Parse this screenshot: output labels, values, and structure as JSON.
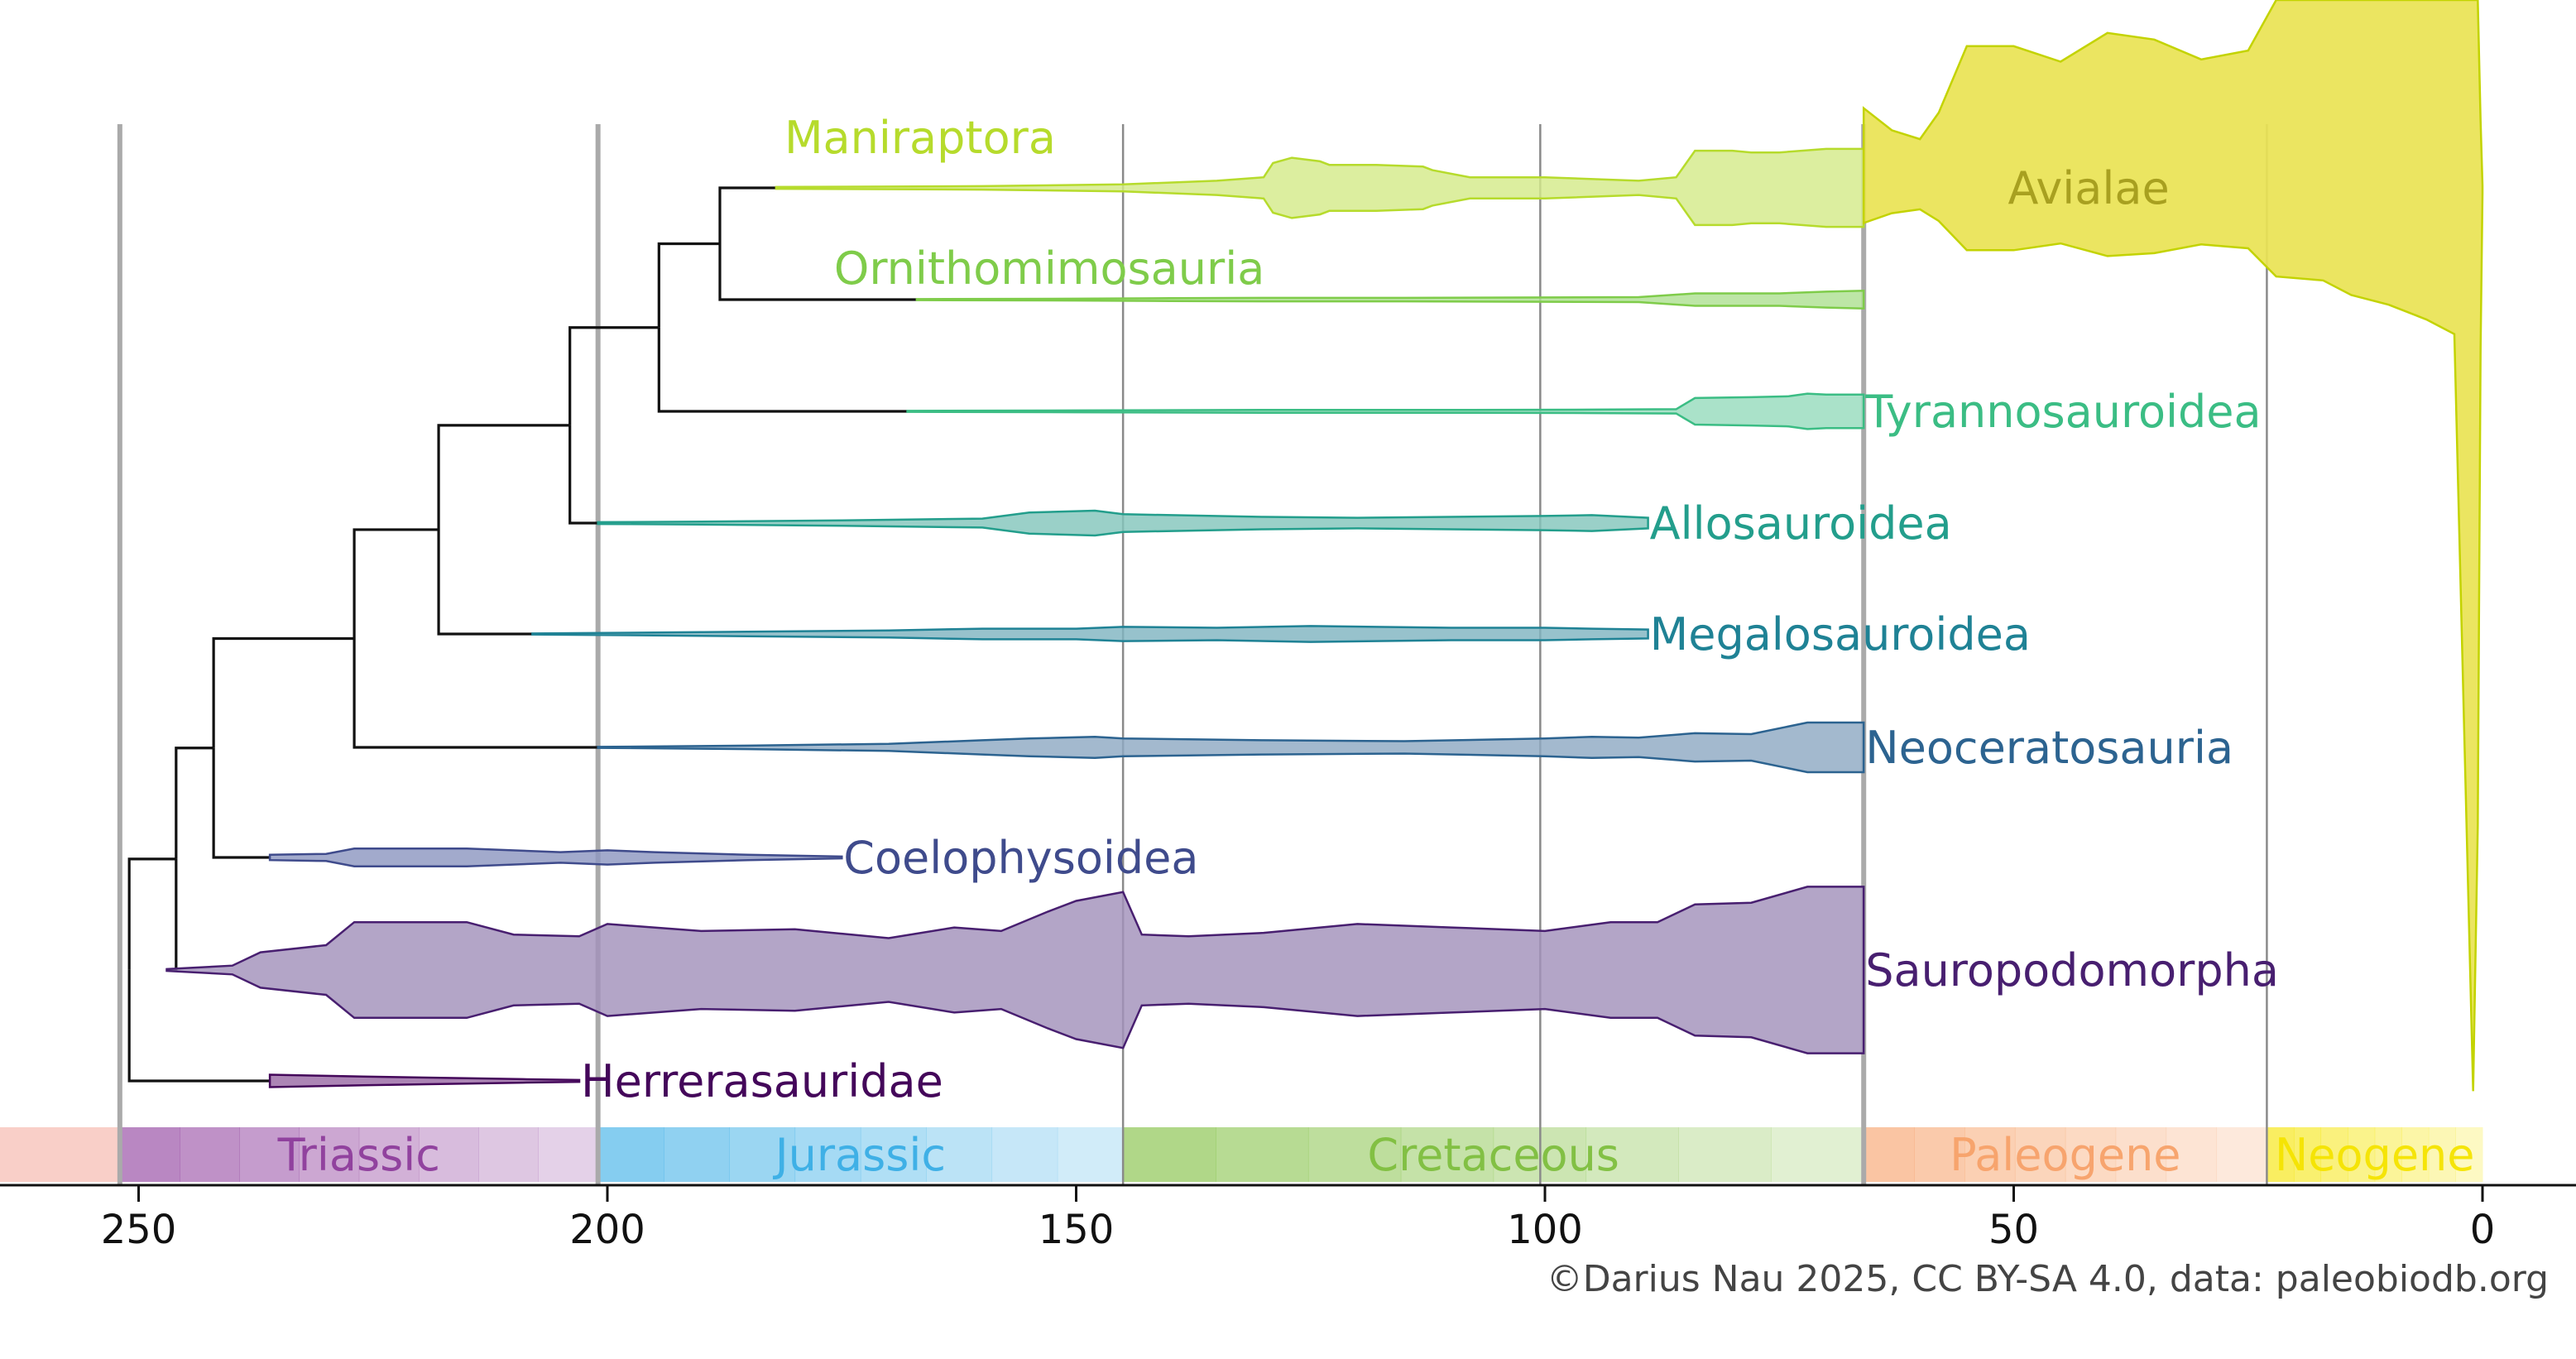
{
  "chart_data": {
    "type": "area",
    "title": "",
    "xlabel": "",
    "ylabel": "",
    "x_axis": {
      "reversed": true,
      "xlim": [
        265,
        0
      ],
      "ticks": [
        250,
        200,
        150,
        100,
        50,
        0
      ],
      "tick_labels": [
        "250",
        "200",
        "150",
        "100",
        "50",
        "0"
      ]
    },
    "boundaries_ma": [
      {
        "age": 252,
        "major": true
      },
      {
        "age": 201,
        "major": true
      },
      {
        "age": 145,
        "major": false
      },
      {
        "age": 100.5,
        "major": false
      },
      {
        "age": 66,
        "major": true
      },
      {
        "age": 23,
        "major": false
      }
    ],
    "periods": [
      {
        "name": "Triassic",
        "start": 252,
        "end": 201,
        "color": "#8e3d9c"
      },
      {
        "name": "Jurassic",
        "start": 201,
        "end": 145,
        "color": "#3aaee6"
      },
      {
        "name": "Cretaceous",
        "start": 145,
        "end": 66,
        "color": "#7fbf3f"
      },
      {
        "name": "Paleogene",
        "start": 66,
        "end": 23,
        "color": "#f7a26a"
      },
      {
        "name": "Neogene",
        "start": 23,
        "end": 0,
        "color": "#f5e400"
      }
    ],
    "pre_triassic_color": "#f4a79a",
    "tree_color": "#111111",
    "clades": [
      {
        "name": "Maniraptora",
        "label_pos": "above-left",
        "color": "#b6db2c",
        "fill": "#d4ea8a",
        "start": 182,
        "end": 66,
        "profile": [
          [
            182,
            0.5
          ],
          [
            160,
            1.0
          ],
          [
            145,
            2.0
          ],
          [
            135,
            4.0
          ],
          [
            130,
            6.0
          ],
          [
            129,
            14
          ],
          [
            127,
            17
          ],
          [
            124,
            15
          ],
          [
            123,
            13
          ],
          [
            118,
            13
          ],
          [
            113,
            12
          ],
          [
            112,
            10
          ],
          [
            108,
            6
          ],
          [
            100,
            6
          ],
          [
            90,
            4
          ],
          [
            86,
            6
          ],
          [
            84,
            21
          ],
          [
            80,
            21
          ],
          [
            78,
            20
          ],
          [
            75,
            20
          ],
          [
            70,
            22
          ],
          [
            67,
            22
          ],
          [
            66,
            22
          ]
        ]
      },
      {
        "name": "Ornithomimosauria",
        "label_pos": "above-left",
        "color": "#7fcc4a",
        "fill": "#aee093",
        "start": 167,
        "end": 66,
        "profile": [
          [
            167,
            0.3
          ],
          [
            150,
            0.5
          ],
          [
            140,
            0.8
          ],
          [
            130,
            1.0
          ],
          [
            115,
            1.0
          ],
          [
            100,
            1.2
          ],
          [
            90,
            1.4
          ],
          [
            84,
            3.5
          ],
          [
            75,
            3.5
          ],
          [
            70,
            4.5
          ],
          [
            66,
            5.0
          ]
        ]
      },
      {
        "name": "Tyrannosauroidea",
        "label_pos": "right",
        "color": "#3bbd84",
        "fill": "#97dcbd",
        "start": 168,
        "end": 66,
        "profile": [
          [
            168,
            0.3
          ],
          [
            150,
            0.5
          ],
          [
            130,
            0.8
          ],
          [
            110,
            0.8
          ],
          [
            95,
            1.0
          ],
          [
            86,
            1.2
          ],
          [
            84,
            7.5
          ],
          [
            78,
            8.0
          ],
          [
            74,
            8.5
          ],
          [
            72,
            10
          ],
          [
            70,
            9.5
          ],
          [
            66,
            9.5
          ]
        ]
      },
      {
        "name": "Allosauroidea",
        "label_pos": "right",
        "color": "#239e8c",
        "fill": "#84c6bc",
        "start": 201,
        "end": 89,
        "profile": [
          [
            201,
            0.5
          ],
          [
            190,
            0.8
          ],
          [
            175,
            1.5
          ],
          [
            160,
            2.5
          ],
          [
            155,
            6.0
          ],
          [
            148,
            7.0
          ],
          [
            145,
            5.0
          ],
          [
            130,
            3.5
          ],
          [
            120,
            3.0
          ],
          [
            110,
            3.5
          ],
          [
            100,
            4.0
          ],
          [
            95,
            4.5
          ],
          [
            89,
            3.0
          ]
        ]
      },
      {
        "name": "Megalosauroidea",
        "label_pos": "right",
        "color": "#1f8295",
        "fill": "#80b4c1",
        "start": 208,
        "end": 89,
        "profile": [
          [
            208,
            0.3
          ],
          [
            195,
            0.8
          ],
          [
            180,
            1.5
          ],
          [
            170,
            2.0
          ],
          [
            160,
            3.0
          ],
          [
            150,
            3.0
          ],
          [
            145,
            4.0
          ],
          [
            135,
            3.5
          ],
          [
            125,
            4.5
          ],
          [
            110,
            3.5
          ],
          [
            100,
            3.5
          ],
          [
            95,
            3.0
          ],
          [
            89,
            2.5
          ]
        ]
      },
      {
        "name": "Neoceratosauria",
        "label_pos": "right",
        "color": "#2c6390",
        "fill": "#8fa9c3",
        "start": 201,
        "end": 66,
        "profile": [
          [
            201,
            0.3
          ],
          [
            185,
            1.0
          ],
          [
            170,
            2.0
          ],
          [
            160,
            4.0
          ],
          [
            155,
            5.0
          ],
          [
            148,
            6.0
          ],
          [
            145,
            5.0
          ],
          [
            130,
            4.0
          ],
          [
            115,
            3.5
          ],
          [
            100,
            5.0
          ],
          [
            95,
            6.0
          ],
          [
            90,
            5.5
          ],
          [
            84,
            8.0
          ],
          [
            78,
            7.5
          ],
          [
            72,
            14
          ],
          [
            66,
            14
          ]
        ]
      },
      {
        "name": "Coelophysoidea",
        "label_pos": "right",
        "color": "#3f4b8c",
        "fill": "#8e97c1",
        "start": 236,
        "end": 175,
        "profile": [
          [
            236,
            1.5
          ],
          [
            230,
            2.0
          ],
          [
            227,
            5.0
          ],
          [
            215,
            5.0
          ],
          [
            205,
            3.0
          ],
          [
            200,
            4.0
          ],
          [
            195,
            3.0
          ],
          [
            185,
            1.5
          ],
          [
            175,
            0.5
          ]
        ]
      },
      {
        "name": "Sauropodomorpha",
        "label_pos": "right",
        "color": "#481f70",
        "fill": "#a291bb",
        "start": 247,
        "end": 66,
        "profile": [
          [
            247,
            0.5
          ],
          [
            240,
            2.5
          ],
          [
            237,
            10
          ],
          [
            230,
            14
          ],
          [
            227,
            27
          ],
          [
            215,
            27
          ],
          [
            210,
            20
          ],
          [
            203,
            19
          ],
          [
            200,
            26
          ],
          [
            190,
            22
          ],
          [
            180,
            23
          ],
          [
            170,
            18
          ],
          [
            163,
            24
          ],
          [
            158,
            22
          ],
          [
            153,
            33
          ],
          [
            150,
            39
          ],
          [
            145,
            44
          ],
          [
            143,
            20
          ],
          [
            138,
            19
          ],
          [
            130,
            21
          ],
          [
            120,
            26
          ],
          [
            110,
            24
          ],
          [
            100,
            22
          ],
          [
            93,
            27
          ],
          [
            88,
            27
          ],
          [
            84,
            37
          ],
          [
            78,
            38
          ],
          [
            72,
            47
          ],
          [
            66,
            47
          ]
        ]
      },
      {
        "name": "Herrerasauridae",
        "label_pos": "right",
        "color": "#44075a",
        "fill": "#9a6aa5",
        "start": 236,
        "end": 203,
        "profile": [
          [
            236,
            3.5
          ],
          [
            231,
            3.0
          ],
          [
            226,
            2.5
          ],
          [
            215,
            1.5
          ],
          [
            209,
            1.0
          ],
          [
            203,
            0.5
          ]
        ]
      },
      {
        "name": "Avialae",
        "label_pos": "inside",
        "color": "#c3d300",
        "fill": "#e9e354",
        "start": 66,
        "end": 0,
        "profile": [
          [
            66,
            36
          ],
          [
            63,
            26
          ],
          [
            60,
            22
          ],
          [
            58,
            34
          ],
          [
            55,
            64
          ],
          [
            50,
            64
          ],
          [
            45,
            57
          ],
          [
            40,
            70
          ],
          [
            35,
            67
          ],
          [
            30,
            58
          ],
          [
            25,
            62
          ],
          [
            22,
            91
          ],
          [
            17,
            95
          ],
          [
            14,
            110
          ],
          [
            10,
            120
          ],
          [
            6,
            135
          ],
          [
            3,
            150
          ],
          [
            1,
            170
          ],
          [
            0.5,
            120
          ],
          [
            0.2,
            30
          ],
          [
            0,
            1
          ]
        ]
      }
    ],
    "credit": "©Darius Nau 2025, CC BY-SA 4.0, data: paleobiodb.org"
  }
}
